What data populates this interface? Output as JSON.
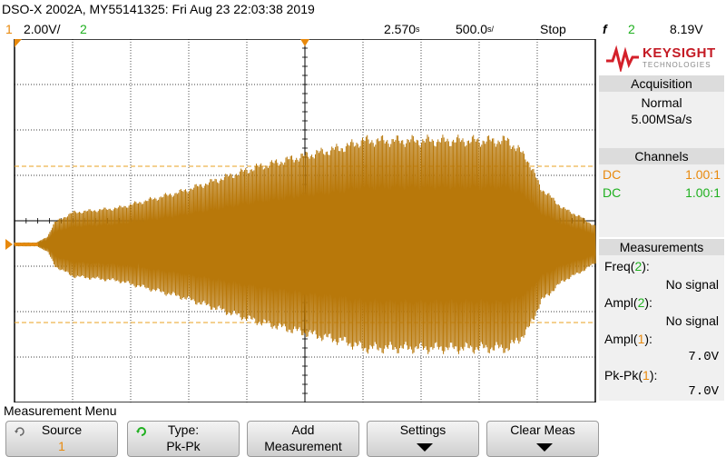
{
  "header": {
    "title": "DSO-X 2002A, MY55141325: Fri Aug 23 22:03:38 2019"
  },
  "status": {
    "ch1_num": "1",
    "ch1_scale": "2.00V/",
    "ch2_num": "2",
    "time_delay": "2.570",
    "time_delay_unit": "s",
    "time_scale": "500.0",
    "time_scale_unit": "s/",
    "run_state": "Stop",
    "trigger_symbol": "f",
    "trigger_source": "2",
    "trigger_level": "8.19V"
  },
  "brand": {
    "logo_text": "KEYSIGHT",
    "logo_sub": "TECHNOLOGIES"
  },
  "acquisition": {
    "heading": "Acquisition",
    "mode": "Normal",
    "sample_rate": "5.00MSa/s"
  },
  "channels": {
    "heading": "Channels",
    "rows": [
      {
        "coupling": "DC",
        "probe": "1.00:1",
        "color": "#e8890c"
      },
      {
        "coupling": "DC",
        "probe": "1.00:1",
        "color": "#1fb01f"
      }
    ]
  },
  "measurements": {
    "heading": "Measurements",
    "items": [
      {
        "name": "Freq",
        "ch": "2",
        "ch_color": "#1fb01f",
        "value": "No signal"
      },
      {
        "name": "Ampl",
        "ch": "2",
        "ch_color": "#1fb01f",
        "value": "No signal"
      },
      {
        "name": "Ampl",
        "ch": "1",
        "ch_color": "#e8890c",
        "value": "7.0V"
      },
      {
        "name": "Pk-Pk",
        "ch": "1",
        "ch_color": "#e8890c",
        "value": "7.0V"
      }
    ]
  },
  "menu": {
    "title": "Measurement Menu",
    "keys": [
      {
        "line1": "Source",
        "line2": "1",
        "line2_color": "#e8890c",
        "icon": "rotate-knob-icon",
        "arrow": false
      },
      {
        "line1": "Type:",
        "line2": "Pk-Pk",
        "line2_color": "#000000",
        "icon": "rotate-knob-green-icon",
        "arrow": false
      },
      {
        "line1": "Add",
        "line2": "Measurement",
        "line2_color": "#000000",
        "icon": "",
        "arrow": false
      },
      {
        "line1": "Settings",
        "line2": "",
        "line2_color": "#000000",
        "icon": "",
        "arrow": true
      },
      {
        "line1": "Clear Meas",
        "line2": "",
        "line2_color": "#000000",
        "icon": "",
        "arrow": true
      }
    ]
  },
  "colors": {
    "ch1": "#e8890c",
    "ch2": "#1fb01f",
    "waveform": "#b8780a",
    "grid": "#000000",
    "cursor": "#e8a020"
  }
}
